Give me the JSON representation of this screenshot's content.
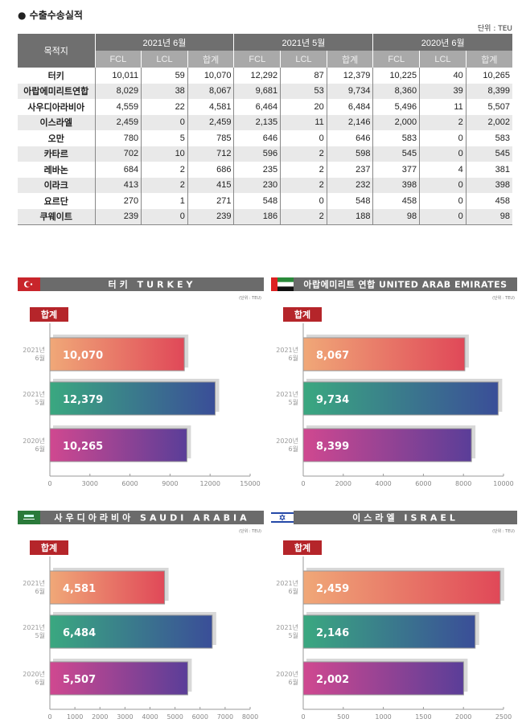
{
  "title": "수출수송실적",
  "unit": "단위 : TEU",
  "table": {
    "col_header": "목적지",
    "periods": [
      "2021년 6월",
      "2021년 5월",
      "2020년 6월"
    ],
    "sub_headers": [
      "FCL",
      "LCL",
      "합계"
    ],
    "rows": [
      [
        "터키",
        "10,011",
        "59",
        "10,070",
        "12,292",
        "87",
        "12,379",
        "10,225",
        "40",
        "10,265"
      ],
      [
        "아랍에미리트연합",
        "8,029",
        "38",
        "8,067",
        "9,681",
        "53",
        "9,734",
        "8,360",
        "39",
        "8,399"
      ],
      [
        "사우디아라비아",
        "4,559",
        "22",
        "4,581",
        "6,464",
        "20",
        "6,484",
        "5,496",
        "11",
        "5,507"
      ],
      [
        "이스라엘",
        "2,459",
        "0",
        "2,459",
        "2,135",
        "11",
        "2,146",
        "2,000",
        "2",
        "2,002"
      ],
      [
        "오만",
        "780",
        "5",
        "785",
        "646",
        "0",
        "646",
        "583",
        "0",
        "583"
      ],
      [
        "카타르",
        "702",
        "10",
        "712",
        "596",
        "2",
        "598",
        "545",
        "0",
        "545"
      ],
      [
        "레바논",
        "684",
        "2",
        "686",
        "235",
        "2",
        "237",
        "377",
        "4",
        "381"
      ],
      [
        "이라크",
        "413",
        "2",
        "415",
        "230",
        "2",
        "232",
        "398",
        "0",
        "398"
      ],
      [
        "요르단",
        "270",
        "1",
        "271",
        "548",
        "0",
        "548",
        "458",
        "0",
        "458"
      ],
      [
        "쿠웨이트",
        "239",
        "0",
        "239",
        "186",
        "2",
        "188",
        "98",
        "0",
        "98"
      ]
    ]
  },
  "chart_data": [
    {
      "type": "bar",
      "title": "터키 TURKEY",
      "flag": "turkey",
      "unit": "(단위 : TEU)",
      "badge": "합계",
      "categories": [
        "2021년 6월",
        "2021년 5월",
        "2020년 6월"
      ],
      "values": [
        10070,
        12379,
        10265
      ],
      "labels": [
        "10,070",
        "12,379",
        "10,265"
      ],
      "xlim": [
        0,
        15000
      ],
      "ticks": [
        0,
        3000,
        6000,
        9000,
        12000,
        15000
      ]
    },
    {
      "type": "bar",
      "title": "아랍에미리트 연합 UNITED ARAB EMIRATES",
      "flag": "uae",
      "unit": "(단위 : TEU)",
      "badge": "합계",
      "categories": [
        "2021년 6월",
        "2021년 5월",
        "2020년 6월"
      ],
      "values": [
        8067,
        9734,
        8399
      ],
      "labels": [
        "8,067",
        "9,734",
        "8,399"
      ],
      "xlim": [
        0,
        10000
      ],
      "ticks": [
        0,
        2000,
        4000,
        6000,
        8000,
        10000
      ]
    },
    {
      "type": "bar",
      "title": "사우디아라비아 SAUDI ARABIA",
      "flag": "saudi",
      "unit": "(단위 : TEU)",
      "badge": "합계",
      "categories": [
        "2021년 6월",
        "2021년 5월",
        "2020년 6월"
      ],
      "values": [
        4581,
        6484,
        5507
      ],
      "labels": [
        "4,581",
        "6,484",
        "5,507"
      ],
      "xlim": [
        0,
        8000
      ],
      "ticks": [
        0,
        1000,
        2000,
        3000,
        4000,
        5000,
        6000,
        7000,
        8000
      ]
    },
    {
      "type": "bar",
      "title": "이스라엘 ISRAEL",
      "flag": "israel",
      "unit": "(단위 : TEU)",
      "badge": "합계",
      "categories": [
        "2021년 6월",
        "2021년 5월",
        "2020년 6월"
      ],
      "values": [
        2459,
        2146,
        2002
      ],
      "labels": [
        "2,459",
        "2,146",
        "2,002"
      ],
      "xlim": [
        0,
        2500
      ],
      "ticks": [
        0,
        500,
        1000,
        1500,
        2000,
        2500
      ]
    }
  ],
  "colors": {
    "header": "#6f6f6f",
    "subheader": "#a9a9a9",
    "badge": "#b5252a",
    "bar1": [
      "#f0a878",
      "#e04858"
    ],
    "bar2": [
      "#3aa880",
      "#3a4e98"
    ],
    "bar3": [
      "#d04890",
      "#5a3e98"
    ]
  }
}
